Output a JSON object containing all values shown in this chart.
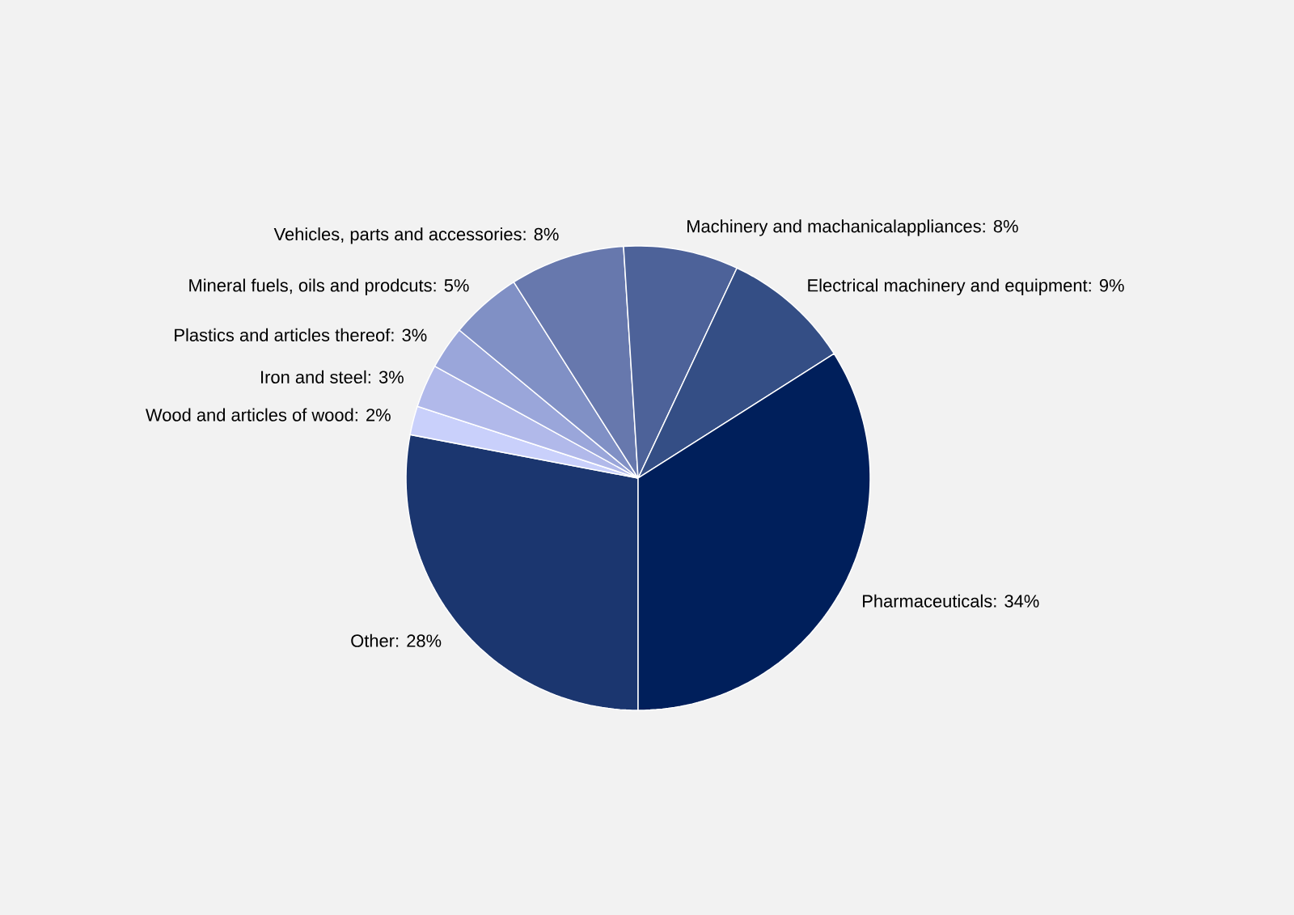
{
  "chart_data": {
    "type": "pie",
    "categories": [
      null,
      null,
      null,
      null,
      null,
      null,
      null,
      null,
      null
    ],
    "values": [
      28,
      2,
      3,
      3,
      5,
      8,
      8,
      9,
      34
    ],
    "value_labels": [
      "Other: 28%",
      "Wood and articles of wood: 2%",
      "Iron and steel: 3%",
      "Plastics and articles thereof: 3%",
      "Mineral fuels, oils and prodcuts: 5%",
      "Vehicles, parts and accessories: 8%",
      "Machinery and machanicalappliances: 8%",
      "Electrical machinery and equipment: 9%",
      "Pharmaceuticals: 34%"
    ],
    "colors": [
      "#1b366f",
      "#c9d0fb",
      "#b1b9ea",
      "#9aa6da",
      "#8090c5",
      "#6778ad",
      "#4d6299",
      "#344e85",
      "#001f5b"
    ],
    "data_labels": true
  }
}
